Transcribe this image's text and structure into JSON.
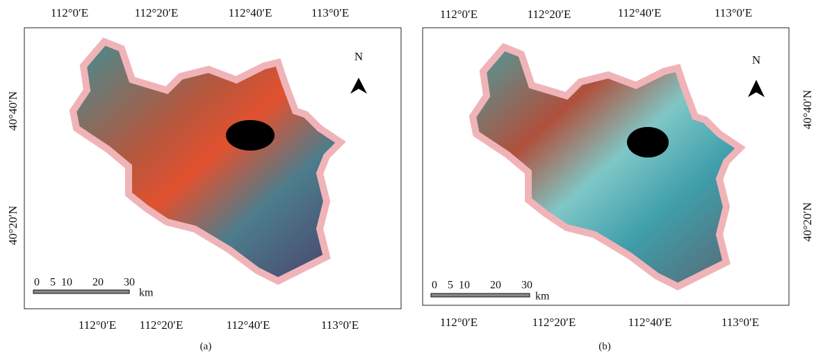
{
  "panels": [
    {
      "caption": "(a)",
      "top_ticks": [
        "112°0′E",
        "112°20′E",
        "112°40′E",
        "113°0′E"
      ],
      "bottom_ticks": [
        "112°0′E",
        "112°20′E",
        "112°40′E",
        "113°0′E"
      ],
      "left_ticks": [
        "40°40′N",
        "40°20′N"
      ],
      "north": "N",
      "scale": {
        "labels": [
          "0",
          "5",
          "10",
          "20",
          "30"
        ],
        "unit": "km"
      }
    },
    {
      "caption": "(b)",
      "top_ticks": [
        "112°0′E",
        "112°20′E",
        "112°40′E",
        "113°0′E"
      ],
      "bottom_ticks": [
        "112°0′E",
        "112°20′E",
        "112°40′E",
        "113°0′E"
      ],
      "right_ticks": [
        "40°40′N",
        "40°20′N"
      ],
      "north": "N",
      "scale": {
        "labels": [
          "0",
          "5",
          "10",
          "20",
          "30"
        ],
        "unit": "km"
      }
    }
  ]
}
